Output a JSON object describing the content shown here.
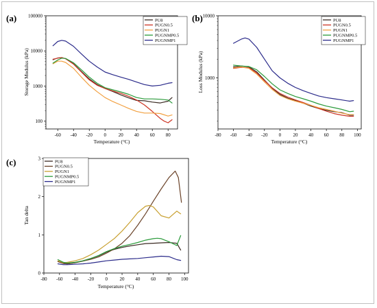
{
  "chart_data": [
    {
      "panel_label": "(a)",
      "type": "line",
      "xlabel": "Temperature (°C)",
      "ylabel": "Storage Modulus (kPa)",
      "y_scale": "log",
      "xlim": [
        -75,
        92
      ],
      "ylim": [
        60,
        100000
      ],
      "x_ticks": [
        -60,
        -40,
        -20,
        0,
        20,
        40,
        60,
        80
      ],
      "y_ticks": [
        100,
        1000,
        10000,
        100000
      ],
      "x_tick_labels": [
        "-60",
        "-40",
        "-20",
        "0",
        "20",
        "40",
        "60",
        "80"
      ],
      "y_tick_labels": [
        "100",
        "1000",
        "10000",
        "100000"
      ],
      "legend_position": "top-right",
      "series": [
        {
          "name": "PU8",
          "color": "#3a2a22",
          "x": [
            -66,
            -60,
            -55,
            -50,
            -40,
            -30,
            -20,
            -10,
            0,
            10,
            20,
            30,
            40,
            50,
            60,
            70,
            80,
            85
          ],
          "y": [
            5600,
            6300,
            6400,
            6000,
            4300,
            2600,
            1600,
            1100,
            850,
            700,
            560,
            460,
            390,
            380,
            350,
            330,
            370,
            470
          ]
        },
        {
          "name": "PUGN0.5",
          "color": "#cc3322",
          "x": [
            -66,
            -60,
            -55,
            -50,
            -40,
            -30,
            -20,
            -10,
            0,
            10,
            20,
            30,
            40,
            50,
            60,
            70,
            75,
            80,
            85
          ],
          "y": [
            5800,
            6200,
            6500,
            6000,
            4200,
            2500,
            1500,
            1050,
            850,
            720,
            620,
            510,
            400,
            290,
            190,
            120,
            100,
            90,
            110
          ]
        },
        {
          "name": "PUGN1",
          "color": "#f2a040",
          "x": [
            -66,
            -60,
            -55,
            -50,
            -40,
            -30,
            -20,
            -10,
            0,
            10,
            20,
            30,
            40,
            50,
            60,
            70,
            80,
            85
          ],
          "y": [
            4300,
            5100,
            5100,
            4700,
            3200,
            1800,
            1050,
            690,
            470,
            360,
            290,
            230,
            190,
            170,
            170,
            165,
            140,
            150
          ]
        },
        {
          "name": "PUGNMP0.5",
          "color": "#2a9a3a",
          "x": [
            -66,
            -60,
            -55,
            -50,
            -40,
            -30,
            -20,
            -10,
            0,
            10,
            20,
            30,
            40,
            50,
            60,
            70,
            80,
            85
          ],
          "y": [
            4500,
            5500,
            6200,
            6100,
            4600,
            2900,
            1800,
            1200,
            900,
            780,
            680,
            580,
            470,
            430,
            430,
            420,
            400,
            330
          ]
        },
        {
          "name": "PUGNMP1",
          "color": "#2a2a8a",
          "x": [
            -66,
            -60,
            -55,
            -50,
            -40,
            -30,
            -20,
            -10,
            0,
            10,
            20,
            30,
            40,
            50,
            60,
            70,
            80,
            85
          ],
          "y": [
            14000,
            18500,
            20000,
            19000,
            13500,
            8200,
            5100,
            3500,
            2500,
            2100,
            1800,
            1550,
            1300,
            1100,
            1000,
            1050,
            1200,
            1250
          ]
        }
      ]
    },
    {
      "panel_label": "(b)",
      "type": "line",
      "xlabel": "Temperature (°C)",
      "ylabel": "Loss Modulus (kPa)",
      "y_scale": "log",
      "xlim": [
        -80,
        105
      ],
      "ylim": [
        150,
        10000
      ],
      "x_ticks": [
        -80,
        -60,
        -40,
        -20,
        0,
        20,
        40,
        60,
        80,
        100
      ],
      "y_ticks": [
        1000,
        10000
      ],
      "x_tick_labels": [
        "-80",
        "-60",
        "-40",
        "-20",
        "0",
        "20",
        "40",
        "60",
        "80",
        "100"
      ],
      "y_tick_labels": [
        "1000",
        "10000"
      ],
      "legend_position": "top-right",
      "series": [
        {
          "name": "PU8",
          "color": "#3a2a22",
          "x": [
            -60,
            -50,
            -40,
            -30,
            -20,
            -10,
            0,
            10,
            20,
            30,
            40,
            50,
            60,
            70,
            80,
            90,
            95
          ],
          "y": [
            1500,
            1550,
            1500,
            1250,
            920,
            680,
            540,
            470,
            430,
            390,
            350,
            320,
            300,
            285,
            275,
            250,
            250
          ]
        },
        {
          "name": "PUGN0.5",
          "color": "#cc3322",
          "x": [
            -60,
            -50,
            -40,
            -30,
            -20,
            -10,
            0,
            10,
            20,
            30,
            40,
            50,
            60,
            70,
            80,
            90,
            95
          ],
          "y": [
            1420,
            1480,
            1450,
            1200,
            900,
            690,
            560,
            490,
            440,
            400,
            360,
            320,
            290,
            265,
            250,
            240,
            240
          ]
        },
        {
          "name": "PUGN1",
          "color": "#f2a040",
          "x": [
            -60,
            -50,
            -40,
            -30,
            -20,
            -10,
            0,
            10,
            20,
            30,
            40,
            50,
            60,
            70,
            80,
            90,
            95
          ],
          "y": [
            1450,
            1500,
            1420,
            1150,
            860,
            650,
            520,
            460,
            420,
            390,
            360,
            330,
            310,
            290,
            270,
            255,
            255
          ]
        },
        {
          "name": "PUGNMP0.5",
          "color": "#2a9a3a",
          "x": [
            -60,
            -50,
            -40,
            -30,
            -20,
            -10,
            0,
            10,
            20,
            30,
            40,
            50,
            60,
            70,
            80,
            90,
            95
          ],
          "y": [
            1600,
            1550,
            1520,
            1350,
            1050,
            800,
            640,
            560,
            500,
            460,
            420,
            380,
            350,
            330,
            310,
            285,
            290
          ]
        },
        {
          "name": "PUGNMP1",
          "color": "#2a2a8a",
          "x": [
            -60,
            -50,
            -45,
            -40,
            -30,
            -20,
            -10,
            0,
            10,
            20,
            30,
            40,
            50,
            60,
            70,
            80,
            90,
            95
          ],
          "y": [
            3600,
            4200,
            4400,
            4200,
            3100,
            2000,
            1300,
            1000,
            820,
            700,
            620,
            560,
            510,
            480,
            460,
            440,
            420,
            430
          ]
        }
      ]
    },
    {
      "panel_label": "(c)",
      "type": "line",
      "xlabel": "Temperature (°C)",
      "ylabel": "Tan delta",
      "y_scale": "linear",
      "xlim": [
        -80,
        105
      ],
      "ylim": [
        0,
        3
      ],
      "x_ticks": [
        -80,
        -60,
        -40,
        -20,
        0,
        20,
        40,
        60,
        80,
        100
      ],
      "y_ticks": [
        0,
        1,
        2,
        3
      ],
      "x_tick_labels": [
        "-80",
        "-60",
        "-40",
        "-20",
        "0",
        "20",
        "40",
        "60",
        "80",
        "100"
      ],
      "y_tick_labels": [
        "0",
        "1",
        "2",
        "3"
      ],
      "legend_position": "top-left",
      "series": [
        {
          "name": "PU8",
          "color": "#3a2a22",
          "x": [
            -62,
            -55,
            -50,
            -40,
            -30,
            -20,
            -10,
            0,
            10,
            20,
            30,
            40,
            50,
            60,
            70,
            80,
            90,
            95
          ],
          "y": [
            0.3,
            0.25,
            0.24,
            0.27,
            0.32,
            0.38,
            0.45,
            0.55,
            0.62,
            0.67,
            0.71,
            0.74,
            0.77,
            0.78,
            0.79,
            0.8,
            0.78,
            0.6
          ]
        },
        {
          "name": "PUGN0.5",
          "color": "#6a4228",
          "x": [
            -62,
            -55,
            -50,
            -40,
            -30,
            -20,
            -10,
            0,
            10,
            20,
            30,
            40,
            50,
            60,
            70,
            80,
            88,
            92,
            96
          ],
          "y": [
            0.3,
            0.25,
            0.24,
            0.27,
            0.31,
            0.36,
            0.42,
            0.52,
            0.63,
            0.78,
            0.98,
            1.25,
            1.55,
            1.88,
            2.2,
            2.5,
            2.67,
            2.5,
            1.85
          ]
        },
        {
          "name": "PUGN1",
          "color": "#c8a030",
          "x": [
            -62,
            -55,
            -50,
            -40,
            -30,
            -20,
            -10,
            0,
            10,
            20,
            30,
            40,
            50,
            55,
            60,
            70,
            80,
            90,
            95
          ],
          "y": [
            0.32,
            0.27,
            0.28,
            0.32,
            0.38,
            0.48,
            0.6,
            0.75,
            0.9,
            1.1,
            1.33,
            1.58,
            1.75,
            1.77,
            1.73,
            1.5,
            1.44,
            1.62,
            1.55
          ]
        },
        {
          "name": "PUGNMP0.5",
          "color": "#2a9a3a",
          "x": [
            -62,
            -55,
            -50,
            -40,
            -30,
            -20,
            -10,
            0,
            10,
            20,
            30,
            40,
            50,
            60,
            65,
            70,
            80,
            90,
            95
          ],
          "y": [
            0.35,
            0.28,
            0.26,
            0.28,
            0.32,
            0.38,
            0.46,
            0.56,
            0.64,
            0.7,
            0.75,
            0.8,
            0.86,
            0.9,
            0.91,
            0.9,
            0.82,
            0.72,
            0.98
          ]
        },
        {
          "name": "PUGNMP1",
          "color": "#2a2a8a",
          "x": [
            -62,
            -55,
            -50,
            -40,
            -30,
            -20,
            -10,
            0,
            10,
            20,
            30,
            40,
            50,
            60,
            70,
            80,
            90,
            95
          ],
          "y": [
            0.24,
            0.22,
            0.22,
            0.23,
            0.24,
            0.26,
            0.29,
            0.32,
            0.34,
            0.36,
            0.37,
            0.38,
            0.4,
            0.42,
            0.44,
            0.43,
            0.35,
            0.33
          ]
        }
      ]
    }
  ]
}
